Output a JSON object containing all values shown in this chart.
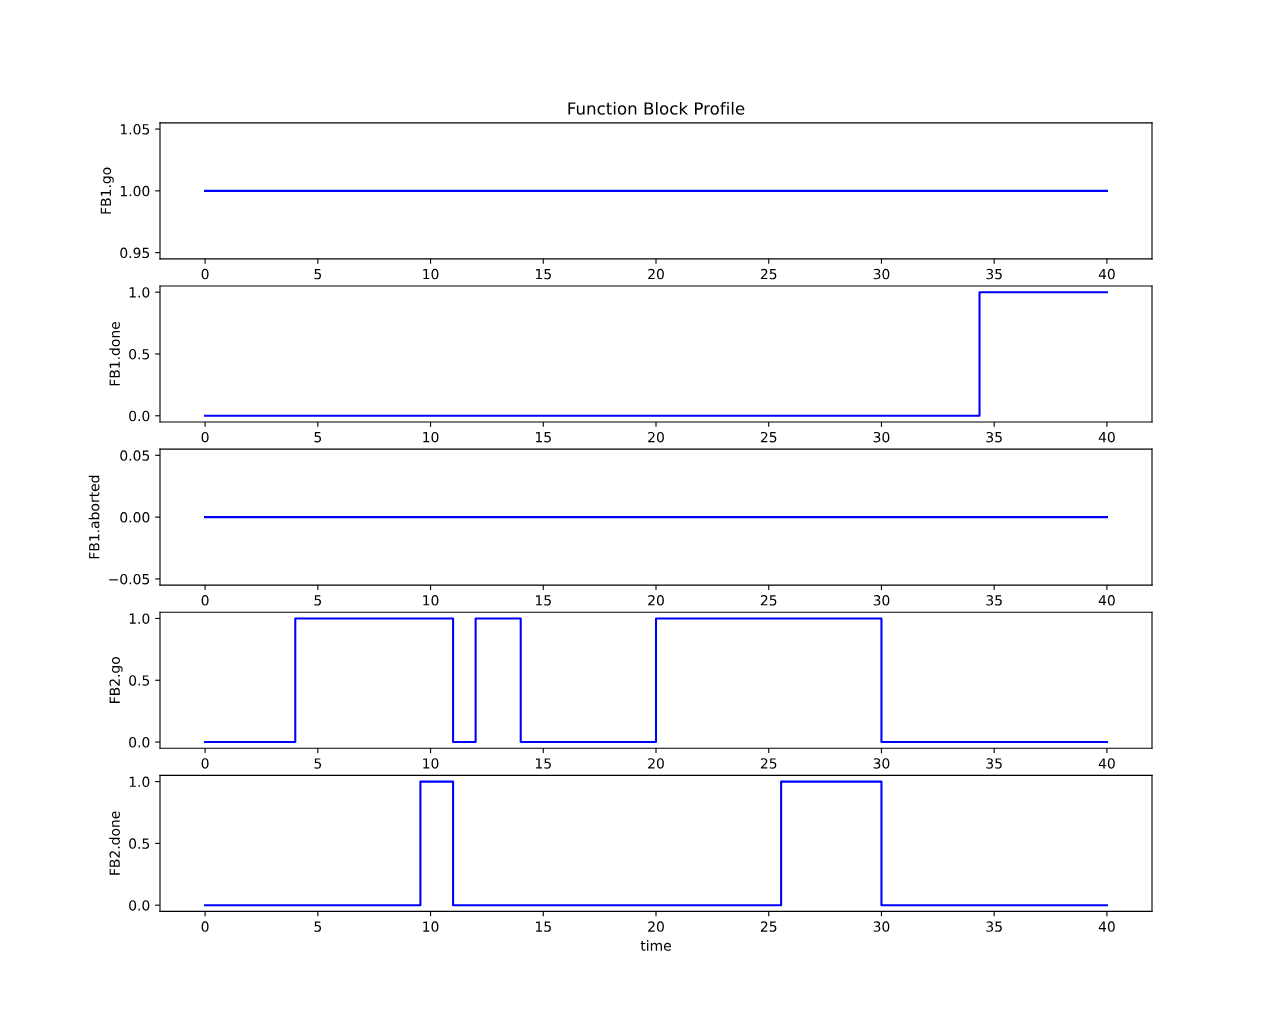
{
  "chart_data": [
    {
      "type": "step",
      "title": "Function Block Profile",
      "ylabel": "FB1.go",
      "x": [
        0,
        40
      ],
      "series": [
        {
          "color": "#0000ff",
          "values": [
            1,
            1
          ]
        }
      ],
      "xlim": [
        -2,
        42
      ],
      "xticks": [
        0,
        5,
        10,
        15,
        20,
        25,
        30,
        35,
        40
      ],
      "ylim": [
        0.945,
        1.055
      ],
      "yticks": [
        {
          "value": 0.95,
          "label": "0.95"
        },
        {
          "value": 1,
          "label": "1.00"
        },
        {
          "value": 1.05,
          "label": "1.05"
        }
      ],
      "grid": false,
      "legend": false
    },
    {
      "type": "step",
      "ylabel": "FB1.done",
      "x": [
        0,
        34.35,
        40
      ],
      "series": [
        {
          "color": "#0000ff",
          "values": [
            0,
            1,
            1
          ]
        }
      ],
      "xlim": [
        -2,
        42
      ],
      "xticks": [
        0,
        5,
        10,
        15,
        20,
        25,
        30,
        35,
        40
      ],
      "ylim": [
        -0.05,
        1.05
      ],
      "yticks": [
        {
          "value": 0,
          "label": "0.0"
        },
        {
          "value": 0.5,
          "label": "0.5"
        },
        {
          "value": 1,
          "label": "1.0"
        }
      ],
      "grid": false,
      "legend": false
    },
    {
      "type": "step",
      "ylabel": "FB1.aborted",
      "x": [
        0,
        40
      ],
      "series": [
        {
          "color": "#0000ff",
          "values": [
            0,
            0
          ]
        }
      ],
      "xlim": [
        -2,
        42
      ],
      "xticks": [
        0,
        5,
        10,
        15,
        20,
        25,
        30,
        35,
        40
      ],
      "ylim": [
        -0.055,
        0.055
      ],
      "yticks": [
        {
          "value": -0.05,
          "label": "−0.05"
        },
        {
          "value": 0,
          "label": "0.00"
        },
        {
          "value": 0.05,
          "label": "0.05"
        }
      ],
      "grid": false,
      "legend": false
    },
    {
      "type": "step",
      "ylabel": "FB2.go",
      "x": [
        0,
        4,
        11,
        12,
        14,
        20,
        30,
        40
      ],
      "series": [
        {
          "color": "#0000ff",
          "values": [
            0,
            1,
            0,
            1,
            0,
            1,
            0,
            0
          ]
        }
      ],
      "xlim": [
        -2,
        42
      ],
      "xticks": [
        0,
        5,
        10,
        15,
        20,
        25,
        30,
        35,
        40
      ],
      "ylim": [
        -0.05,
        1.05
      ],
      "yticks": [
        {
          "value": 0,
          "label": "0.0"
        },
        {
          "value": 0.5,
          "label": "0.5"
        },
        {
          "value": 1,
          "label": "1.0"
        }
      ],
      "grid": false,
      "legend": false
    },
    {
      "type": "step",
      "ylabel": "FB2.done",
      "xlabel": "time",
      "x": [
        0,
        9.55,
        11,
        25.55,
        30,
        40
      ],
      "series": [
        {
          "color": "#0000ff",
          "values": [
            0,
            1,
            0,
            1,
            0,
            0
          ]
        }
      ],
      "xlim": [
        -2,
        42
      ],
      "xticks": [
        0,
        5,
        10,
        15,
        20,
        25,
        30,
        35,
        40
      ],
      "ylim": [
        -0.05,
        1.05
      ],
      "yticks": [
        {
          "value": 0,
          "label": "0.0"
        },
        {
          "value": 0.5,
          "label": "0.5"
        },
        {
          "value": 1,
          "label": "1.0"
        }
      ],
      "grid": false,
      "legend": false
    }
  ]
}
